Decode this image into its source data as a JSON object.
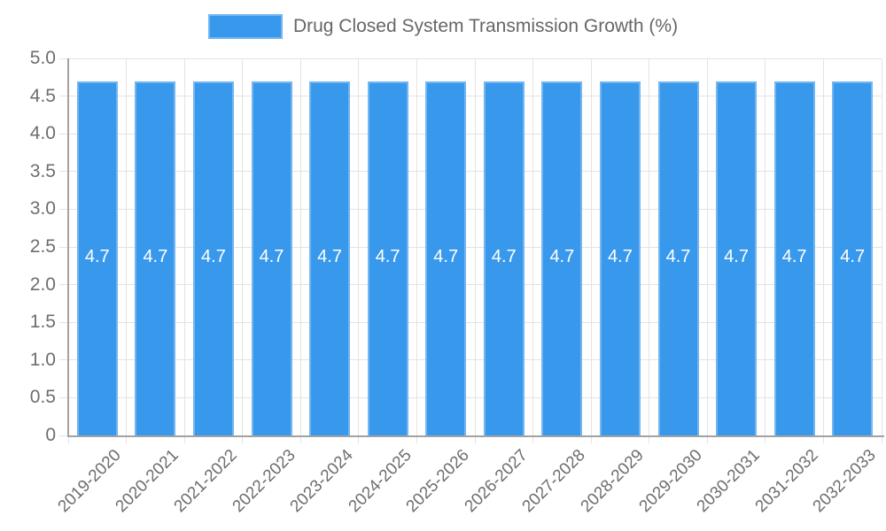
{
  "legend": {
    "label": "Drug Closed System Transmission Growth (%)"
  },
  "chart_data": {
    "type": "bar",
    "title": "Drug Closed System Transmission Growth (%)",
    "legend_position": "top",
    "grid": true,
    "categories": [
      "2019-2020",
      "2020-2021",
      "2021-2022",
      "2022-2023",
      "2023-2024",
      "2024-2025",
      "2025-2026",
      "2026-2027",
      "2027-2028",
      "2028-2029",
      "2029-2030",
      "2030-2031",
      "2031-2032",
      "2032-2033"
    ],
    "values": [
      4.7,
      4.7,
      4.7,
      4.7,
      4.7,
      4.7,
      4.7,
      4.7,
      4.7,
      4.7,
      4.7,
      4.7,
      4.7,
      4.7
    ],
    "value_labels": [
      "4.7",
      "4.7",
      "4.7",
      "4.7",
      "4.7",
      "4.7",
      "4.7",
      "4.7",
      "4.7",
      "4.7",
      "4.7",
      "4.7",
      "4.7",
      "4.7"
    ],
    "xlabel": "",
    "ylabel": "",
    "ylim": [
      0,
      5
    ],
    "ytick_step": 0.5,
    "ytick_labels": [
      "0",
      "0.5",
      "1.0",
      "1.5",
      "2.0",
      "2.5",
      "3.0",
      "3.5",
      "4.0",
      "4.5",
      "5.0"
    ],
    "colors": {
      "bar_fill": "#3899EC",
      "bar_border": "#73B6F1",
      "grid_line": "#E3E3E3",
      "axis_line": "#A2A2A2",
      "tick_text": "#6E6E6E",
      "legend_text": "#666666",
      "bar_label_text": "#FFFFFF",
      "background": "#FFFFFF"
    }
  }
}
